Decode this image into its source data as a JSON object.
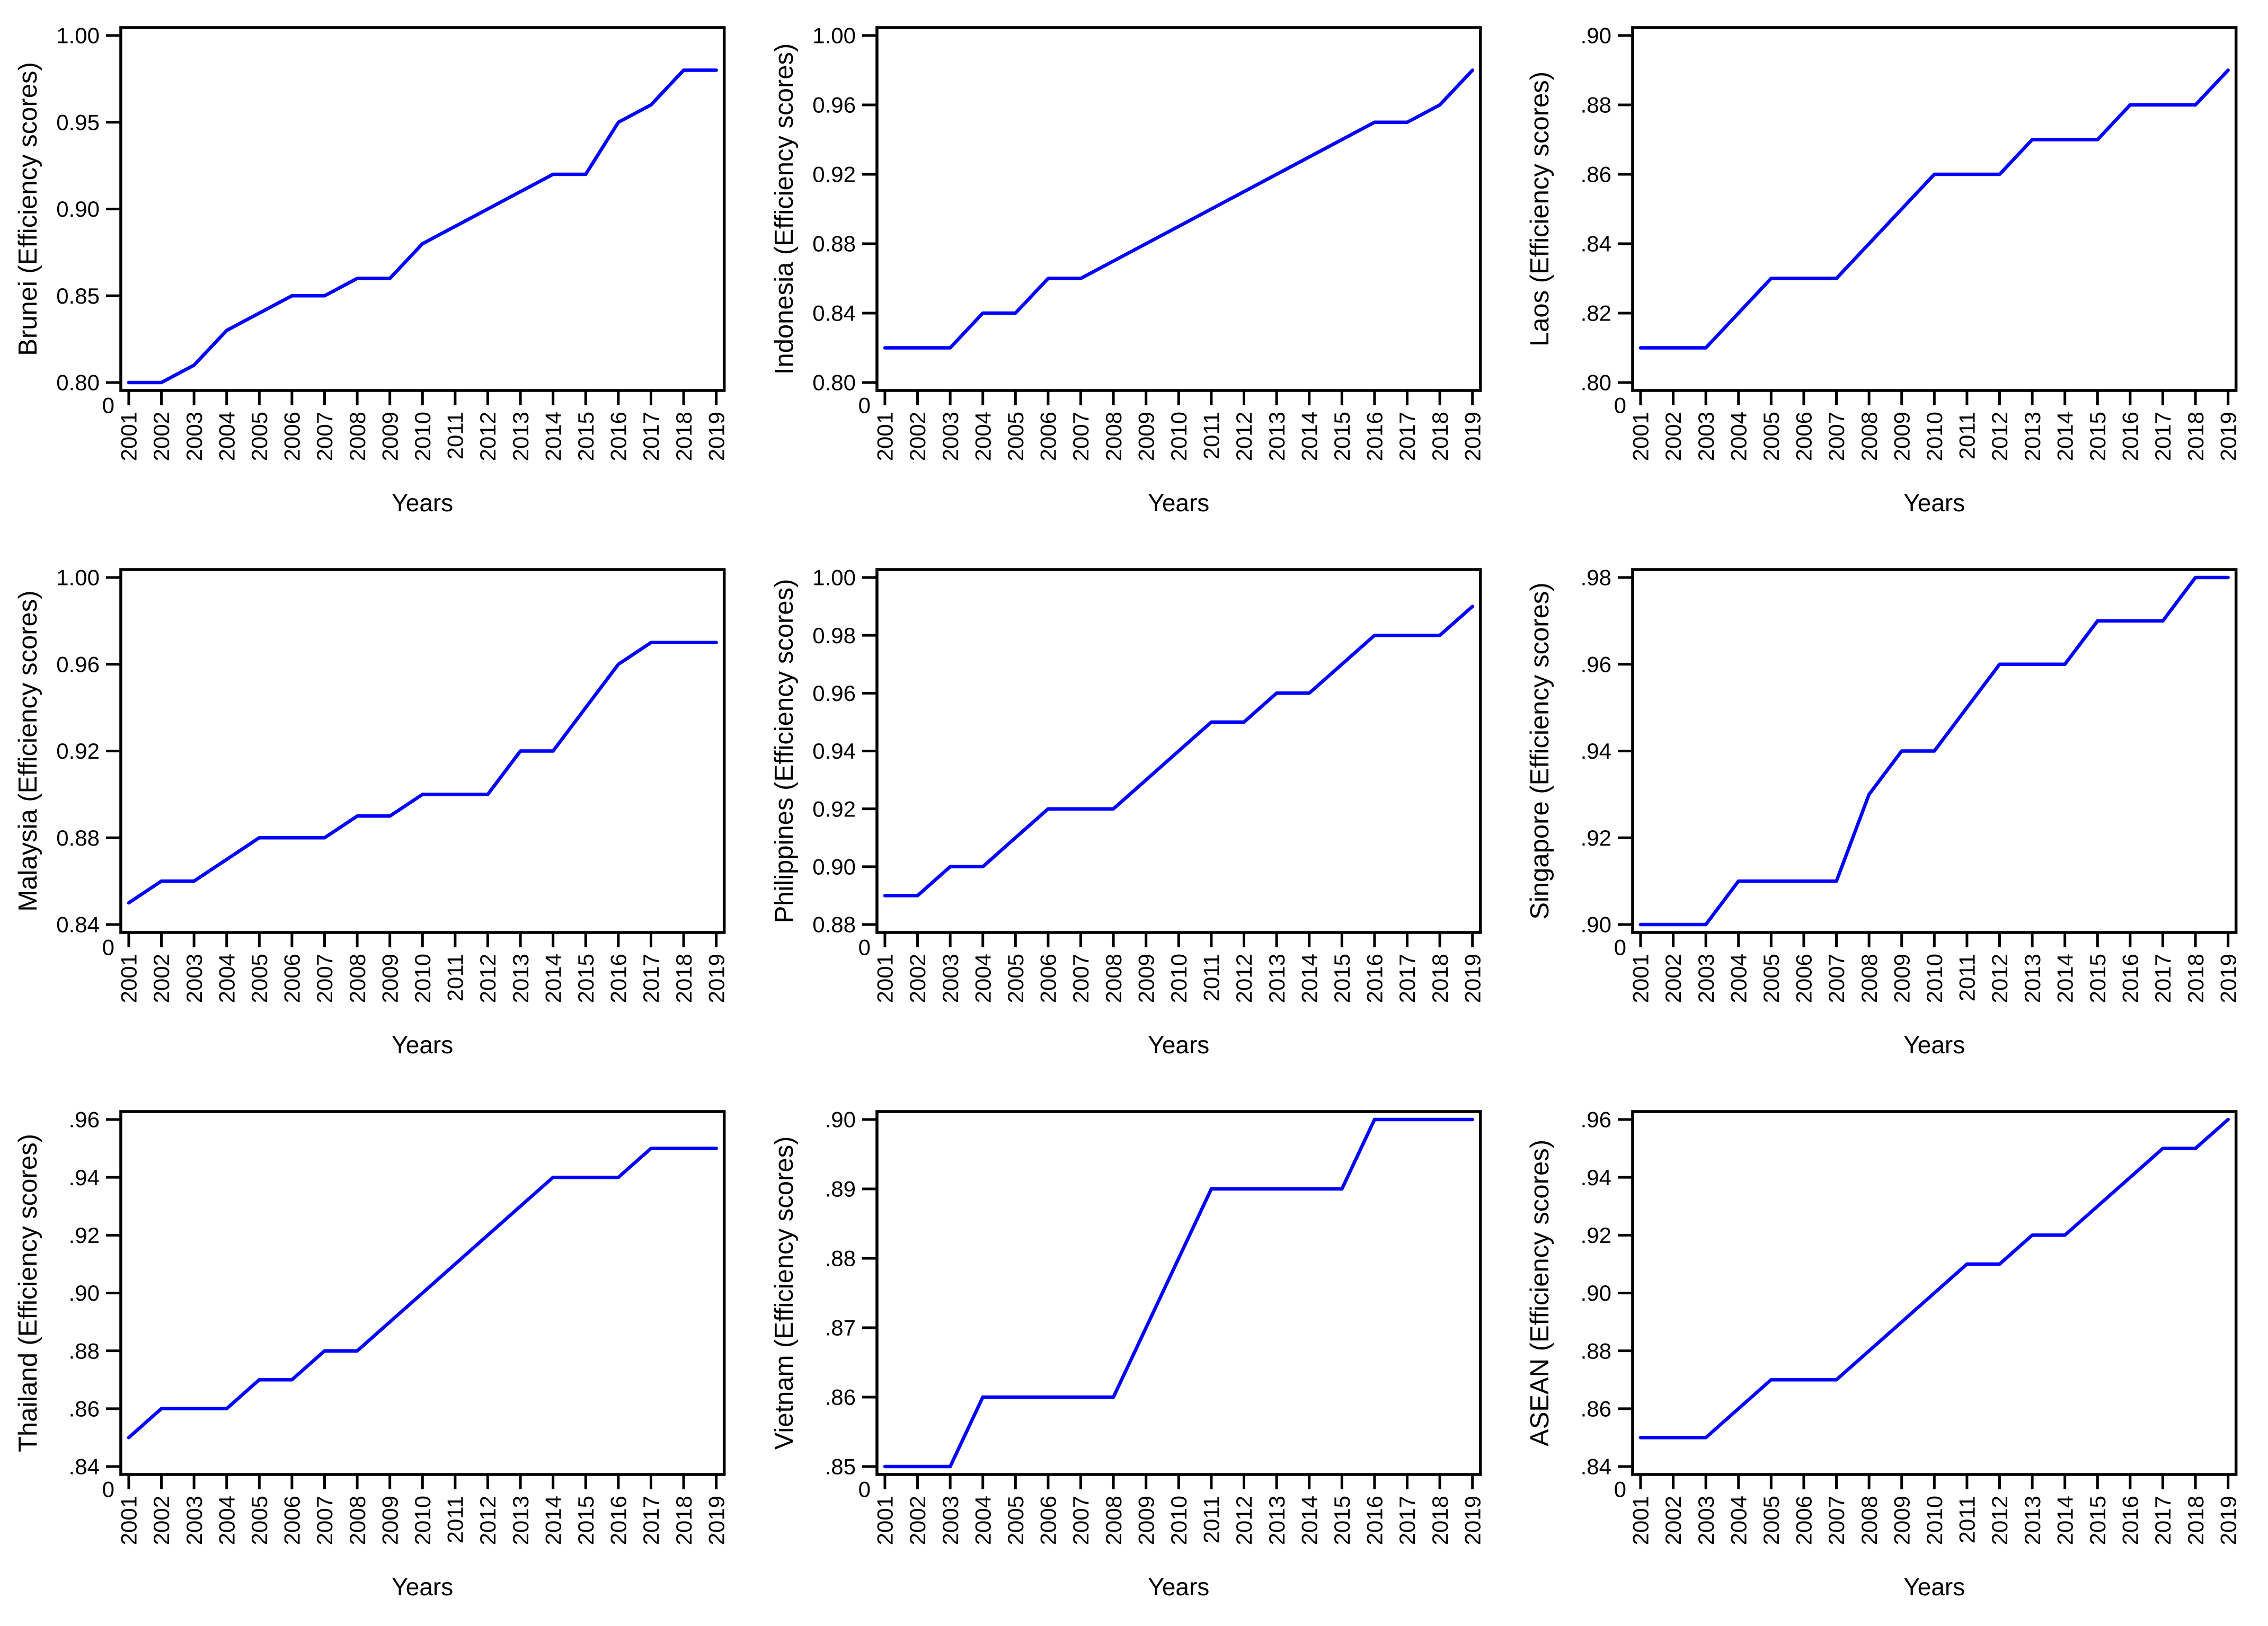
{
  "chart_data": {
    "type": "line",
    "layout": "3x3-grid",
    "x": [
      2001,
      2002,
      2003,
      2004,
      2005,
      2006,
      2007,
      2008,
      2009,
      2010,
      2011,
      2012,
      2013,
      2014,
      2015,
      2016,
      2017,
      2018,
      2019
    ],
    "xlabel": "Years",
    "origin_label": "0",
    "line_color": "#0000ff",
    "axis_color": "#000000",
    "grid": false,
    "legend": "none",
    "panels": [
      {
        "name": "Brunei",
        "ylabel": "Brunei (Efficiency scores)",
        "ytick_labels": [
          "0.80",
          "0.85",
          "0.90",
          "0.95",
          "1.00"
        ],
        "ytick_values": [
          0.8,
          0.85,
          0.9,
          0.95,
          1.0
        ],
        "ylim": [
          0.8,
          1.0
        ],
        "values": [
          0.8,
          0.8,
          0.81,
          0.83,
          0.84,
          0.85,
          0.85,
          0.86,
          0.86,
          0.88,
          0.89,
          0.9,
          0.91,
          0.92,
          0.92,
          0.95,
          0.96,
          0.98,
          0.98
        ]
      },
      {
        "name": "Indonesia",
        "ylabel": "Indonesia (Efficiency scores)",
        "ytick_labels": [
          "0.80",
          "0.84",
          "0.88",
          "0.92",
          "0.96",
          "1.00"
        ],
        "ytick_values": [
          0.8,
          0.84,
          0.88,
          0.92,
          0.96,
          1.0
        ],
        "ylim": [
          0.8,
          1.0
        ],
        "values": [
          0.82,
          0.82,
          0.82,
          0.84,
          0.84,
          0.86,
          0.86,
          0.87,
          0.88,
          0.89,
          0.9,
          0.91,
          0.92,
          0.93,
          0.94,
          0.95,
          0.95,
          0.96,
          0.98
        ]
      },
      {
        "name": "Laos",
        "ylabel": "Laos (Efficiency scores)",
        "ytick_labels": [
          ".80",
          ".82",
          ".84",
          ".86",
          ".88",
          ".90"
        ],
        "ytick_values": [
          0.8,
          0.82,
          0.84,
          0.86,
          0.88,
          0.9
        ],
        "ylim": [
          0.8,
          0.9
        ],
        "values": [
          0.81,
          0.81,
          0.81,
          0.82,
          0.83,
          0.83,
          0.83,
          0.84,
          0.85,
          0.86,
          0.86,
          0.86,
          0.87,
          0.87,
          0.87,
          0.88,
          0.88,
          0.88,
          0.89
        ]
      },
      {
        "name": "Malaysia",
        "ylabel": "Malaysia (Efficiency scores)",
        "ytick_labels": [
          "0.84",
          "0.88",
          "0.92",
          "0.96",
          "1.00"
        ],
        "ytick_values": [
          0.84,
          0.88,
          0.92,
          0.96,
          1.0
        ],
        "ylim": [
          0.84,
          1.0
        ],
        "values": [
          0.85,
          0.86,
          0.86,
          0.87,
          0.88,
          0.88,
          0.88,
          0.89,
          0.89,
          0.9,
          0.9,
          0.9,
          0.92,
          0.92,
          0.94,
          0.96,
          0.97,
          0.97,
          0.97
        ]
      },
      {
        "name": "Philippines",
        "ylabel": "Philippines (Efficiency scores)",
        "ytick_labels": [
          "0.88",
          "0.90",
          "0.92",
          "0.94",
          "0.96",
          "0.98",
          "1.00"
        ],
        "ytick_values": [
          0.88,
          0.9,
          0.92,
          0.94,
          0.96,
          0.98,
          1.0
        ],
        "ylim": [
          0.88,
          1.0
        ],
        "values": [
          0.89,
          0.89,
          0.9,
          0.9,
          0.91,
          0.92,
          0.92,
          0.92,
          0.93,
          0.94,
          0.95,
          0.95,
          0.96,
          0.96,
          0.97,
          0.98,
          0.98,
          0.98,
          0.99
        ]
      },
      {
        "name": "Singapore",
        "ylabel": "Singapore (Efficiency scores)",
        "ytick_labels": [
          ".90",
          ".92",
          ".94",
          ".96",
          ".98"
        ],
        "ytick_values": [
          0.9,
          0.92,
          0.94,
          0.96,
          0.98
        ],
        "ylim": [
          0.9,
          0.98
        ],
        "values": [
          0.9,
          0.9,
          0.9,
          0.91,
          0.91,
          0.91,
          0.91,
          0.93,
          0.94,
          0.94,
          0.95,
          0.96,
          0.96,
          0.96,
          0.97,
          0.97,
          0.97,
          0.98,
          0.98
        ]
      },
      {
        "name": "Thailand",
        "ylabel": "Thailand (Efficiency scores)",
        "ytick_labels": [
          ".84",
          ".86",
          ".88",
          ".90",
          ".92",
          ".94",
          ".96"
        ],
        "ytick_values": [
          0.84,
          0.86,
          0.88,
          0.9,
          0.92,
          0.94,
          0.96
        ],
        "ylim": [
          0.84,
          0.96
        ],
        "values": [
          0.85,
          0.86,
          0.86,
          0.86,
          0.87,
          0.87,
          0.88,
          0.88,
          0.89,
          0.9,
          0.91,
          0.92,
          0.93,
          0.94,
          0.94,
          0.94,
          0.95,
          0.95,
          0.95
        ]
      },
      {
        "name": "Vietnam",
        "ylabel": "Vietnam (Efficiency scores)",
        "ytick_labels": [
          ".85",
          ".86",
          ".87",
          ".88",
          ".89",
          ".90"
        ],
        "ytick_values": [
          0.85,
          0.86,
          0.87,
          0.88,
          0.89,
          0.9
        ],
        "ylim": [
          0.85,
          0.9
        ],
        "values": [
          0.85,
          0.85,
          0.85,
          0.86,
          0.86,
          0.86,
          0.86,
          0.86,
          0.87,
          0.88,
          0.89,
          0.89,
          0.89,
          0.89,
          0.89,
          0.9,
          0.9,
          0.9,
          0.9
        ]
      },
      {
        "name": "ASEAN",
        "ylabel": "ASEAN (Efficiency scores)",
        "ytick_labels": [
          ".84",
          ".86",
          ".88",
          ".90",
          ".92",
          ".94",
          ".96"
        ],
        "ytick_values": [
          0.84,
          0.86,
          0.88,
          0.9,
          0.92,
          0.94,
          0.96
        ],
        "ylim": [
          0.84,
          0.96
        ],
        "values": [
          0.85,
          0.85,
          0.85,
          0.86,
          0.87,
          0.87,
          0.87,
          0.88,
          0.89,
          0.9,
          0.91,
          0.91,
          0.92,
          0.92,
          0.93,
          0.94,
          0.95,
          0.95,
          0.96
        ]
      }
    ]
  }
}
